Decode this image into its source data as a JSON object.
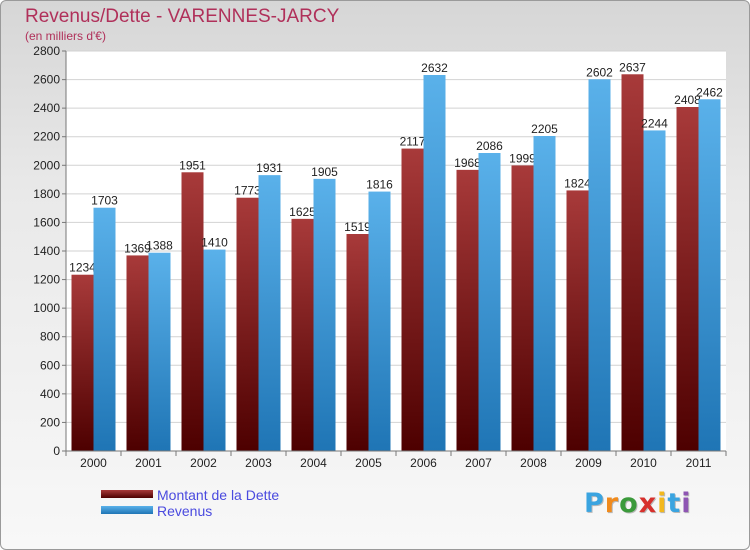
{
  "title": "Revenus/Dette - VARENNES-JARCY",
  "subtitle": "(en milliers d'€)",
  "logo_text": "Proxiti",
  "colors": {
    "title": "#b0305a",
    "debt_dark": "#4d0000",
    "debt_light": "#a83a3a",
    "revenue_dark": "#1f75b5",
    "revenue_light": "#5ab1ea",
    "legend_text": "#4a4adf"
  },
  "chart_data": {
    "type": "bar",
    "title": "Revenus/Dette - VARENNES-JARCY",
    "subtitle": "(en milliers d'€)",
    "categories": [
      "2000",
      "2001",
      "2002",
      "2003",
      "2004",
      "2005",
      "2006",
      "2007",
      "2008",
      "2009",
      "2010",
      "2011"
    ],
    "series": [
      {
        "name": "Montant de la Dette",
        "values": [
          1234,
          1369,
          1951,
          1773,
          1625,
          1519,
          2117,
          1968,
          1999,
          1824,
          2637,
          2408
        ]
      },
      {
        "name": "Revenus",
        "values": [
          1703,
          1388,
          1410,
          1931,
          1905,
          1816,
          2632,
          2086,
          2205,
          2602,
          2244,
          2462
        ]
      }
    ],
    "ylim": [
      0,
      2800
    ],
    "yticks": [
      0,
      200,
      400,
      600,
      800,
      1000,
      1200,
      1400,
      1600,
      1800,
      2000,
      2200,
      2400,
      2600,
      2800
    ],
    "grid": true,
    "legend_position": "bottom-left"
  }
}
